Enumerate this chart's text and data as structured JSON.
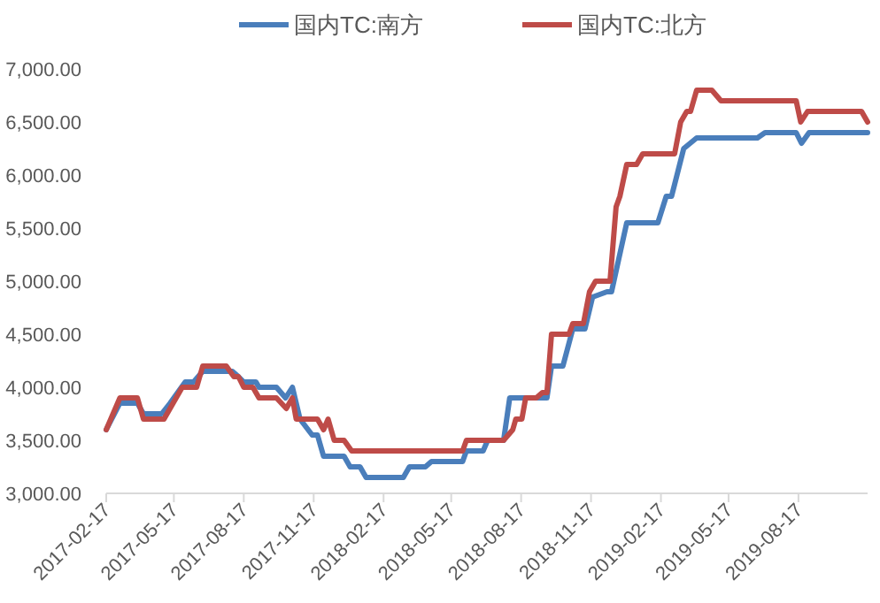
{
  "chart_data": {
    "type": "line",
    "legend": "top",
    "line_style": "solid",
    "xlim": [
      "2017-02-17",
      "2019-11-16"
    ],
    "xticks": [
      "2017-02-17",
      "2017-05-17",
      "2017-08-17",
      "2017-11-17",
      "2018-02-17",
      "2018-05-17",
      "2018-08-17",
      "2018-11-17",
      "2019-02-17",
      "2019-05-17",
      "2019-08-17"
    ],
    "ylim": [
      3000,
      7000
    ],
    "yticks": [
      {
        "value": 3000,
        "label": "3,000.00"
      },
      {
        "value": 3500,
        "label": "3,500.00"
      },
      {
        "value": 4000,
        "label": "4,000.00"
      },
      {
        "value": 4500,
        "label": "4,500.00"
      },
      {
        "value": 5000,
        "label": "5,000.00"
      },
      {
        "value": 5500,
        "label": "5,500.00"
      },
      {
        "value": 6000,
        "label": "6,000.00"
      },
      {
        "value": 6500,
        "label": "6,500.00"
      },
      {
        "value": 7000,
        "label": "7,000.00"
      }
    ],
    "series": [
      {
        "name": "国内TC:南方",
        "color": "#4a7ebb",
        "x": [
          "2017-02-17",
          "2017-03-07",
          "2017-03-30",
          "2017-04-07",
          "2017-05-01",
          "2017-05-12",
          "2017-06-01",
          "2017-06-12",
          "2017-06-24",
          "2017-08-02",
          "2017-08-10",
          "2017-08-17",
          "2017-09-02",
          "2017-09-06",
          "2017-09-29",
          "2017-10-11",
          "2017-10-20",
          "2017-10-30",
          "2017-11-15",
          "2017-11-22",
          "2017-11-30",
          "2017-12-27",
          "2018-01-04",
          "2018-01-17",
          "2018-01-25",
          "2018-03-15",
          "2018-03-23",
          "2018-04-13",
          "2018-04-21",
          "2018-06-01",
          "2018-06-06",
          "2018-06-28",
          "2018-07-04",
          "2018-07-25",
          "2018-08-02",
          "2018-09-20",
          "2018-09-26",
          "2018-10-11",
          "2018-10-24",
          "2018-11-09",
          "2018-11-19",
          "2018-12-08",
          "2018-12-14",
          "2019-01-03",
          "2019-02-13",
          "2019-02-24",
          "2019-03-03",
          "2019-03-19",
          "2019-04-05",
          "2019-06-24",
          "2019-07-04",
          "2019-08-14",
          "2019-08-21",
          "2019-08-31",
          "2019-11-16"
        ],
        "values": [
          3600,
          3850,
          3850,
          3750,
          3750,
          3850,
          4050,
          4050,
          4150,
          4150,
          4100,
          4050,
          4050,
          4000,
          4000,
          3900,
          4000,
          3700,
          3550,
          3550,
          3350,
          3350,
          3250,
          3250,
          3150,
          3150,
          3250,
          3250,
          3300,
          3300,
          3400,
          3400,
          3500,
          3500,
          3900,
          3900,
          4200,
          4200,
          4550,
          4550,
          4850,
          4900,
          4900,
          5550,
          5550,
          5800,
          5800,
          6250,
          6350,
          6350,
          6400,
          6400,
          6300,
          6400,
          6400
        ]
      },
      {
        "name": "国内TC:北方",
        "color": "#be4b48",
        "x": [
          "2017-02-17",
          "2017-03-07",
          "2017-03-30",
          "2017-04-07",
          "2017-05-04",
          "2017-05-12",
          "2017-05-28",
          "2017-06-16",
          "2017-06-24",
          "2017-07-25",
          "2017-08-04",
          "2017-08-10",
          "2017-08-17",
          "2017-08-29",
          "2017-09-06",
          "2017-09-29",
          "2017-10-12",
          "2017-10-20",
          "2017-10-25",
          "2017-11-22",
          "2017-11-30",
          "2017-12-06",
          "2017-12-14",
          "2017-12-27",
          "2018-01-06",
          "2018-06-01",
          "2018-06-06",
          "2018-07-25",
          "2018-08-06",
          "2018-08-10",
          "2018-08-18",
          "2018-08-23",
          "2018-09-06",
          "2018-09-14",
          "2018-09-20",
          "2018-09-26",
          "2018-10-19",
          "2018-10-24",
          "2018-11-07",
          "2018-11-15",
          "2018-11-23",
          "2018-12-12",
          "2018-12-20",
          "2018-12-25",
          "2019-01-03",
          "2019-01-16",
          "2019-01-24",
          "2019-03-07",
          "2019-03-15",
          "2019-03-23",
          "2019-03-28",
          "2019-04-05",
          "2019-04-25",
          "2019-05-07",
          "2019-08-14",
          "2019-08-20",
          "2019-08-29",
          "2019-11-08",
          "2019-11-16"
        ],
        "values": [
          3600,
          3900,
          3900,
          3700,
          3700,
          3800,
          4000,
          4000,
          4200,
          4200,
          4100,
          4100,
          4000,
          4000,
          3900,
          3900,
          3800,
          3900,
          3700,
          3700,
          3600,
          3700,
          3500,
          3500,
          3400,
          3400,
          3500,
          3500,
          3600,
          3700,
          3700,
          3900,
          3900,
          3950,
          3950,
          4500,
          4500,
          4600,
          4600,
          4900,
          5000,
          5000,
          5700,
          5800,
          6100,
          6100,
          6200,
          6200,
          6500,
          6600,
          6600,
          6800,
          6800,
          6700,
          6700,
          6500,
          6600,
          6600,
          6500
        ]
      }
    ]
  }
}
